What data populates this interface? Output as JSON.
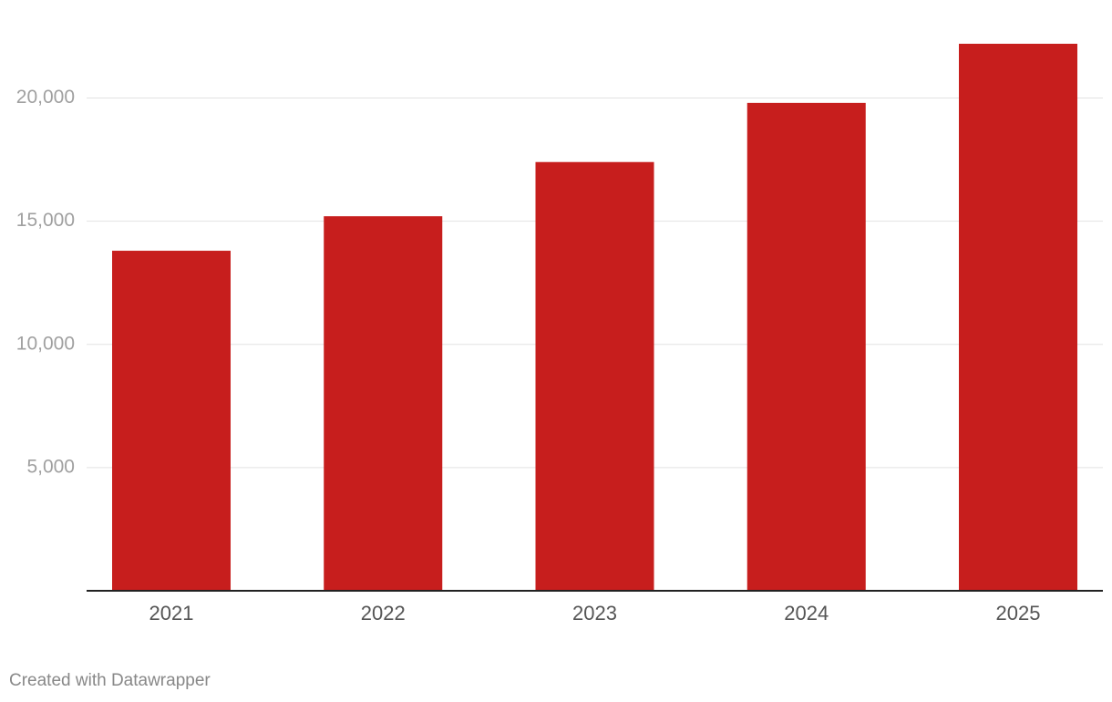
{
  "chart_data": {
    "type": "bar",
    "categories": [
      "2021",
      "2022",
      "2023",
      "2024",
      "2025"
    ],
    "values": [
      13800,
      15200,
      17400,
      19800,
      22200
    ],
    "color": "#c71e1d",
    "ylim": [
      0,
      22200
    ],
    "yticks": [
      {
        "value": 5000,
        "label": "5,000"
      },
      {
        "value": 10000,
        "label": "10,000"
      },
      {
        "value": 15000,
        "label": "15,000"
      },
      {
        "value": 20000,
        "label": "20,000"
      }
    ],
    "grid": true,
    "footer": "Created with Datawrapper"
  }
}
